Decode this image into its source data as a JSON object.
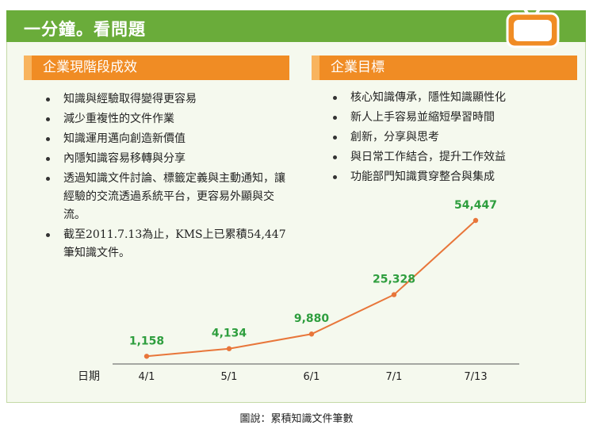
{
  "header": {
    "title": "一分鐘。看問題"
  },
  "left_section": {
    "title": "企業現階段成效",
    "items": [
      "知識與經驗取得變得更容易",
      "減少重複性的文件作業",
      "知識運用邁向創造新價值",
      "內隱知識容易移轉與分享",
      "透過知識文件討論、標籤定義與主動通知，讓經驗的交流透過系統平台，更容易外顯與交流。",
      "截至2011.7.13為止，KMS上已累積54,447筆知識文件。"
    ]
  },
  "right_section": {
    "title": "企業目標",
    "items": [
      "核心知識傳承，隱性知識顯性化",
      "新人上手容易並縮短學習時間",
      "創新，分享與思考",
      "與日常工作結合，提升工作效益",
      "功能部門知識貫穿整合與集成"
    ]
  },
  "chart_data": {
    "type": "line",
    "categories": [
      "4/1",
      "5/1",
      "6/1",
      "7/1",
      "7/13"
    ],
    "values": [
      1158,
      4134,
      9880,
      25328,
      54447
    ],
    "value_labels": [
      "1,158",
      "4,134",
      "9,880",
      "25,328",
      "54,447"
    ],
    "xlabel": "日期",
    "line_color": "#e8763a",
    "label_color": "#2e9e3e"
  },
  "caption": "圖說：累積知識文件筆數",
  "colors": {
    "header": "#6aac3a",
    "section": "#f08c24",
    "frame": "#f5f9ee"
  },
  "icons": {
    "tv": "tv-icon"
  }
}
